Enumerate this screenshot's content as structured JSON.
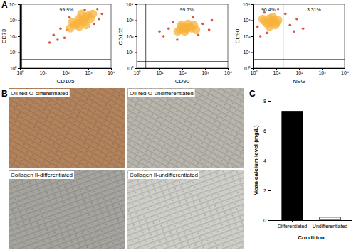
{
  "panel_labels": [
    "A",
    "B",
    "C"
  ],
  "chart_data": [
    {
      "type": "scatter",
      "x_label": "CD105",
      "y_label": "CD73",
      "log": true,
      "xlim": [
        1,
        10000
      ],
      "ylim": [
        1,
        10000
      ],
      "xticks": [
        {
          "value": 1,
          "label": "10⁰"
        },
        {
          "value": 10,
          "label": "10¹"
        },
        {
          "value": 100,
          "label": "10²"
        },
        {
          "value": 1000,
          "label": "10³"
        },
        {
          "value": 10000,
          "label": "10⁴"
        }
      ],
      "yticks": [
        {
          "value": 1,
          "label": "10⁰"
        },
        {
          "value": 10,
          "label": "10¹"
        },
        {
          "value": 100,
          "label": "10²"
        },
        {
          "value": 1000,
          "label": "10³"
        },
        {
          "value": 10000,
          "label": "10⁴"
        }
      ],
      "gates": {
        "x": 1.2,
        "y": 3.5
      },
      "annotations": [
        "99.9%"
      ],
      "series": [
        {
          "color": "#d4402a",
          "x": [
            30,
            60,
            90,
            2500,
            4000,
            150,
            1800,
            45,
            700,
            3000,
            120,
            20
          ],
          "values": [
            120,
            300,
            80,
            5000,
            2500,
            1500,
            600,
            60,
            4500,
            1200,
            250,
            40
          ]
        },
        {
          "color": "#f7b23b",
          "x": [
            500,
            320,
            800,
            400,
            630,
            1000,
            250,
            200,
            1250,
            500,
            160,
            1600,
            400,
            800
          ],
          "values": [
            1000,
            630,
            1600,
            1250,
            800,
            2000,
            500,
            800,
            1250,
            2500,
            320,
            2500,
            400,
            500
          ]
        }
      ]
    },
    {
      "type": "scatter",
      "x_label": "CD90",
      "y_label": "CD105",
      "log": true,
      "xlim": [
        1,
        10000
      ],
      "ylim": [
        1,
        10000
      ],
      "xticks": [
        {
          "value": 1,
          "label": "10⁰"
        },
        {
          "value": 10,
          "label": "10¹"
        },
        {
          "value": 100,
          "label": "10²"
        },
        {
          "value": 1000,
          "label": "10³"
        },
        {
          "value": 10000,
          "label": "10⁴"
        }
      ],
      "yticks": [
        {
          "value": 1,
          "label": "10⁰"
        },
        {
          "value": 10,
          "label": "10¹"
        },
        {
          "value": 100,
          "label": "10²"
        },
        {
          "value": 1000,
          "label": "10³"
        },
        {
          "value": 10000,
          "label": "10⁴"
        }
      ],
      "gates": {
        "x": 2.5,
        "y": 2.6
      },
      "annotations": [
        "99.7%"
      ],
      "series": [
        {
          "color": "#d4402a",
          "x": [
            15,
            25,
            800,
            1500,
            40,
            60,
            2000,
            500,
            10,
            300
          ],
          "values": [
            100,
            300,
            600,
            250,
            800,
            60,
            1000,
            120,
            200,
            1500
          ]
        },
        {
          "color": "#f7b23b",
          "x": [
            126,
            80,
            200,
            160,
            100,
            250,
            63,
            320,
            130,
            180,
            90,
            400
          ],
          "values": [
            316,
            250,
            400,
            300,
            400,
            320,
            200,
            500,
            200,
            600,
            500,
            250
          ]
        }
      ]
    },
    {
      "type": "scatter",
      "x_label": "NEG",
      "y_label": "CD90",
      "log": true,
      "xlim": [
        1,
        10000
      ],
      "ylim": [
        1,
        10000
      ],
      "xticks": [
        {
          "value": 1,
          "label": "10⁰"
        },
        {
          "value": 10,
          "label": "10¹"
        },
        {
          "value": 100,
          "label": "10²"
        },
        {
          "value": 1000,
          "label": "10³"
        },
        {
          "value": 10000,
          "label": "10⁴"
        }
      ],
      "yticks": [
        {
          "value": 1,
          "label": "10⁰"
        },
        {
          "value": 10,
          "label": "10¹"
        },
        {
          "value": 100,
          "label": "10²"
        },
        {
          "value": 1000,
          "label": "10³"
        },
        {
          "value": 10000,
          "label": "10⁴"
        }
      ],
      "gates": {
        "x": 20,
        "y": 3.5
      },
      "annotations": [
        "96.4%",
        "3.31%"
      ],
      "series": [
        {
          "color": "#d4402a",
          "x": [
            2,
            3,
            40,
            80,
            150,
            25,
            1.5,
            12,
            60,
            4
          ],
          "values": [
            100,
            3000,
            500,
            1200,
            300,
            2500,
            400,
            5000,
            200,
            160
          ]
        },
        {
          "color": "#f7b23b",
          "x": [
            6,
            4,
            8,
            5,
            10,
            3,
            7,
            12,
            5,
            9,
            2.5
          ],
          "values": [
            800,
            600,
            1000,
            1250,
            700,
            900,
            1600,
            1000,
            400,
            500,
            1200
          ]
        }
      ]
    },
    {
      "type": "bar",
      "x_label": "Condition",
      "y_label": "Mean calcium level (mg/L)",
      "categories": [
        "Differentiated",
        "Undifferentiated"
      ],
      "values": [
        7.3,
        0.2
      ],
      "colors": [
        "#000000",
        "#ffffff"
      ],
      "ylim": [
        0,
        8
      ],
      "yticks": [
        0,
        2,
        4,
        6,
        8
      ]
    }
  ],
  "images": [
    {
      "label": "Oil red O-differentiated",
      "color": "#b3835c"
    },
    {
      "label": "Oil red O-undifferentiated",
      "color": "#b8b5ad"
    },
    {
      "label": "Collagen II-differentiated",
      "color": "#a5a49f"
    },
    {
      "label": "Collagen II-undifferentiated",
      "color": "#cfcfca"
    }
  ]
}
